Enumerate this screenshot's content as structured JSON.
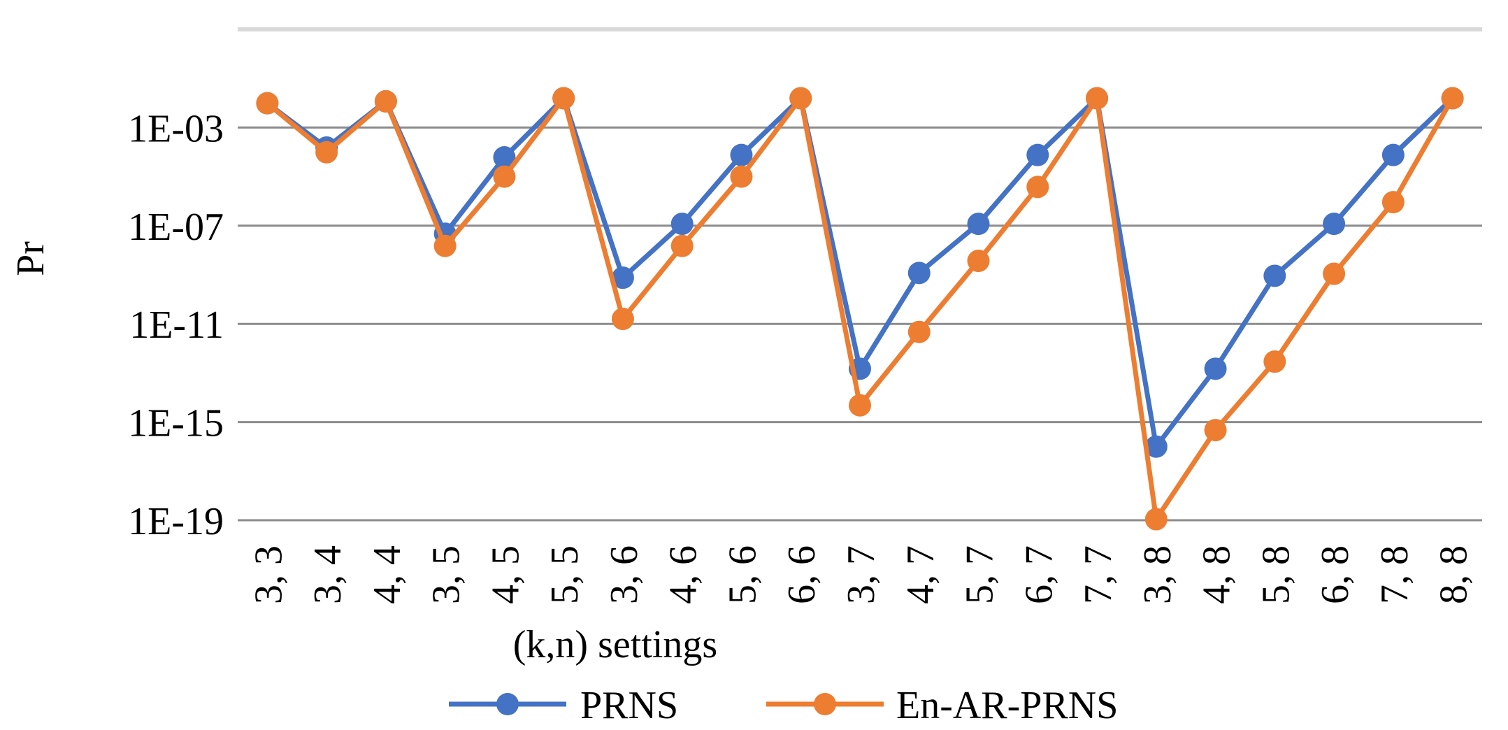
{
  "chart_data": {
    "type": "line",
    "title": "",
    "xlabel": "(k,n) settings",
    "ylabel": "Pr",
    "y_scale": "log",
    "ylim": [
      1e-19,
      10.0
    ],
    "y_ticks": [
      1e-19,
      1e-15,
      1e-11,
      1e-07,
      0.001,
      10.0
    ],
    "y_tick_labels": [
      "1E-19",
      "1E-15",
      "1E-11",
      "1E-07",
      "1E-03",
      ""
    ],
    "categories": [
      "3, 3",
      "3, 4",
      "4, 4",
      "3, 5",
      "4, 5",
      "5, 5",
      "3, 6",
      "4, 6",
      "5, 6",
      "6, 6",
      "3, 7",
      "4, 7",
      "5, 7",
      "6, 7",
      "7, 7",
      "3, 8",
      "4, 8",
      "5, 8",
      "6, 8",
      "7, 8",
      "8, 8"
    ],
    "grid": true,
    "legend_position": "bottom",
    "series": [
      {
        "name": "PRNS",
        "color": "#4472C4",
        "values": [
          0.00977,
          0.000153,
          0.0117,
          4.7e-08,
          6.1e-05,
          0.0156,
          7.6e-10,
          1.19e-07,
          7.6e-05,
          0.0156,
          1.49e-13,
          1.19e-09,
          1.19e-07,
          7.6e-05,
          0.0156,
          1e-16,
          1.49e-13,
          9.1e-10,
          1.19e-07,
          7.6e-05,
          0.0156
        ]
      },
      {
        "name": "En-AR-PRNS",
        "color": "#ED7D31",
        "values": [
          0.00977,
          9.8e-05,
          0.0117,
          1.5e-08,
          1e-05,
          0.0156,
          1.6e-11,
          1.5e-08,
          1e-05,
          0.0156,
          4.8e-15,
          4.7e-12,
          3.7e-09,
          3.8e-06,
          0.0156,
          1.1e-19,
          4.7e-16,
          2.9e-13,
          1.1e-09,
          9.1e-07,
          0.0156
        ]
      }
    ]
  }
}
